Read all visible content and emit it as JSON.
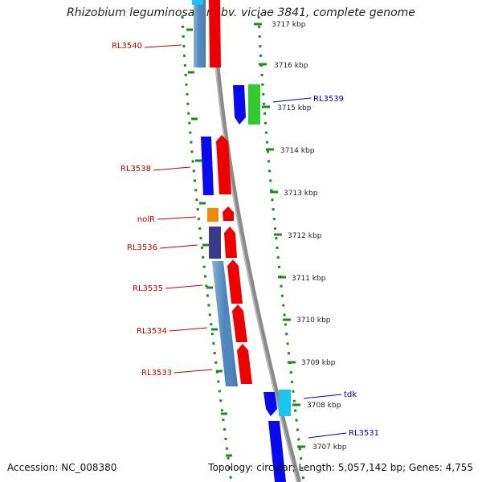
{
  "title": "Rhizobium leguminosarum bv. viciae 3841, complete genome",
  "footer": {
    "accession_label": "Accession:",
    "accession": "NC_008380",
    "topology_label": "Topology:",
    "topology": "circular",
    "length_label": "Length:",
    "length": "5,057,142 bp",
    "genes_label": "Genes:",
    "genes": "4,755"
  },
  "tick_unit": "kbp",
  "ticks": [
    "3717",
    "3716",
    "3715",
    "3714",
    "3713",
    "3712",
    "3711",
    "3710",
    "3709",
    "3708",
    "3707"
  ],
  "colors": {
    "backbone": "#8a8a8a",
    "dots": "#1e8a1e",
    "reverse_label": "#c40000",
    "forward_label": "#0000b0",
    "steelblue": "#4b86bd",
    "red": "#ee0000",
    "blue": "#0a0aee",
    "green": "#2fcb2f",
    "cyan": "#1cc4f0",
    "orange": "#f08a00",
    "indigo": "#3a3a8c"
  },
  "labels": {
    "reverse": [
      "RL3540",
      "RL3538",
      "nolR",
      "RL3536",
      "RL3535",
      "RL3534",
      "RL3533"
    ],
    "forward": [
      "RL3539",
      "tdk",
      "RL3531"
    ]
  }
}
